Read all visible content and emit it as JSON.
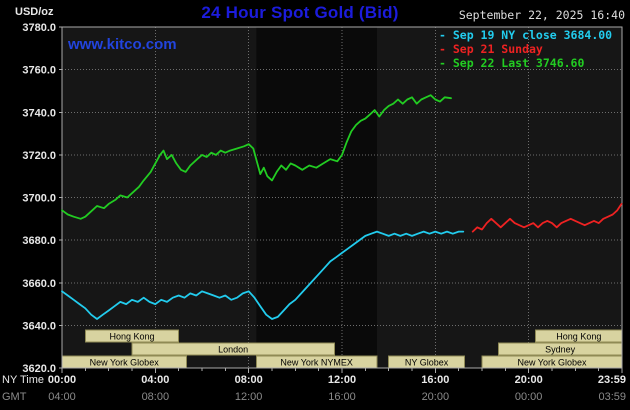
{
  "header": {
    "unit": "USD/oz",
    "title": "24 Hour Spot Gold (Bid)",
    "datetime": "September 22, 2025 16:40",
    "watermark": "www.kitco.com"
  },
  "colors": {
    "background": "#000000",
    "plot_bg": "#161616",
    "nymex_band": "#0a0a0a",
    "grid": "#6e6e6e",
    "plot_border": "#aaaaaa",
    "axis_text": "#e8e8e8",
    "gmt_text": "#8a8a8a",
    "session_box_bg": "#d8d3a0",
    "session_box_border": "#8f8a55",
    "session_text": "#000000",
    "cyan": "#22ccee",
    "red": "#ee2222",
    "green": "#22cc22"
  },
  "legend": [
    {
      "label": "Sep 19 NY close 3684.00",
      "color_key": "cyan"
    },
    {
      "label": "Sep 21 Sunday",
      "color_key": "red"
    },
    {
      "label": "Sep 22 Last 3746.60",
      "color_key": "green"
    }
  ],
  "axes": {
    "y_step": 20,
    "x_row1_label": "NY Time",
    "x_row2_label": "GMT",
    "x_tick_hours": [
      0,
      4,
      8,
      12,
      16,
      20,
      24
    ],
    "x_ticks_ny": [
      "00:00",
      "04:00",
      "08:00",
      "12:00",
      "16:00",
      "20:00",
      "23:59"
    ],
    "x_ticks_gmt": [
      "04:00",
      "08:00",
      "12:00",
      "16:00",
      "20:00",
      "00:00",
      "03:59"
    ]
  },
  "sessions": [
    {
      "row": 0,
      "label": "Hong Kong",
      "start": 1.0,
      "end": 5.0
    },
    {
      "row": 0,
      "label": "Hong Kong",
      "start": 20.3,
      "end": 24
    },
    {
      "row": 1,
      "label": "London",
      "start": 3.0,
      "end": 11.67
    },
    {
      "row": 1,
      "label": "Sydney",
      "start": 18.7,
      "end": 24
    },
    {
      "row": 2,
      "label": "New York Globex",
      "start": 0,
      "end": 5.33
    },
    {
      "row": 2,
      "label": "New York NYMEX",
      "start": 8.33,
      "end": 13.5
    },
    {
      "row": 2,
      "label": "NY Globex",
      "start": 14.0,
      "end": 17.25
    },
    {
      "row": 2,
      "label": "New York Globex",
      "start": 18.0,
      "end": 24
    }
  ],
  "chart_data": {
    "type": "line",
    "title": "24 Hour Spot Gold (Bid)",
    "ylabel": "USD/oz",
    "xlabel": "NY Time (hours 00:00-23:59)",
    "ylim": [
      3620,
      3780
    ],
    "xlim_hours": [
      0,
      24
    ],
    "grid": true,
    "legend_position": "top-right",
    "nymex_band_hours": [
      8.33,
      13.5
    ],
    "series": [
      {
        "name": "Sep 19 NY close 3684.00",
        "color_key": "cyan",
        "close": 3684.0,
        "points": [
          [
            0,
            3656
          ],
          [
            0.25,
            3654
          ],
          [
            0.5,
            3652
          ],
          [
            0.75,
            3650
          ],
          [
            1,
            3648
          ],
          [
            1.25,
            3645
          ],
          [
            1.5,
            3643
          ],
          [
            1.75,
            3645
          ],
          [
            2,
            3647
          ],
          [
            2.25,
            3649
          ],
          [
            2.5,
            3651
          ],
          [
            2.75,
            3650
          ],
          [
            3,
            3652
          ],
          [
            3.25,
            3651
          ],
          [
            3.5,
            3653
          ],
          [
            3.75,
            3651
          ],
          [
            4,
            3650
          ],
          [
            4.25,
            3652
          ],
          [
            4.5,
            3651
          ],
          [
            4.75,
            3653
          ],
          [
            5,
            3654
          ],
          [
            5.25,
            3653
          ],
          [
            5.5,
            3655
          ],
          [
            5.75,
            3654
          ],
          [
            6,
            3656
          ],
          [
            6.25,
            3655
          ],
          [
            6.5,
            3654
          ],
          [
            6.75,
            3653
          ],
          [
            7,
            3654
          ],
          [
            7.25,
            3652
          ],
          [
            7.5,
            3653
          ],
          [
            7.75,
            3655
          ],
          [
            8,
            3656
          ],
          [
            8.25,
            3653
          ],
          [
            8.5,
            3649
          ],
          [
            8.75,
            3645
          ],
          [
            9,
            3643
          ],
          [
            9.25,
            3644
          ],
          [
            9.5,
            3647
          ],
          [
            9.75,
            3650
          ],
          [
            10,
            3652
          ],
          [
            10.25,
            3655
          ],
          [
            10.5,
            3658
          ],
          [
            10.75,
            3661
          ],
          [
            11,
            3664
          ],
          [
            11.25,
            3667
          ],
          [
            11.5,
            3670
          ],
          [
            11.75,
            3672
          ],
          [
            12,
            3674
          ],
          [
            12.25,
            3676
          ],
          [
            12.5,
            3678
          ],
          [
            12.75,
            3680
          ],
          [
            13,
            3682
          ],
          [
            13.25,
            3683
          ],
          [
            13.5,
            3684
          ],
          [
            13.75,
            3683
          ],
          [
            14,
            3682
          ],
          [
            14.25,
            3683
          ],
          [
            14.5,
            3682
          ],
          [
            14.75,
            3683
          ],
          [
            15,
            3682
          ],
          [
            15.25,
            3683
          ],
          [
            15.5,
            3684
          ],
          [
            15.75,
            3683
          ],
          [
            16,
            3684
          ],
          [
            16.25,
            3683
          ],
          [
            16.5,
            3684
          ],
          [
            16.75,
            3683
          ],
          [
            17,
            3684
          ],
          [
            17.2,
            3684
          ]
        ]
      },
      {
        "name": "Sep 21 Sunday",
        "color_key": "red",
        "points": [
          [
            17.6,
            3684
          ],
          [
            17.8,
            3686
          ],
          [
            18,
            3685
          ],
          [
            18.2,
            3688
          ],
          [
            18.4,
            3690
          ],
          [
            18.6,
            3688
          ],
          [
            18.8,
            3686
          ],
          [
            19,
            3688
          ],
          [
            19.2,
            3690
          ],
          [
            19.4,
            3688
          ],
          [
            19.6,
            3687
          ],
          [
            19.8,
            3686
          ],
          [
            20,
            3687
          ],
          [
            20.2,
            3688
          ],
          [
            20.4,
            3686
          ],
          [
            20.6,
            3688
          ],
          [
            20.8,
            3689
          ],
          [
            21,
            3688
          ],
          [
            21.2,
            3686
          ],
          [
            21.4,
            3688
          ],
          [
            21.6,
            3689
          ],
          [
            21.8,
            3690
          ],
          [
            22,
            3689
          ],
          [
            22.2,
            3688
          ],
          [
            22.4,
            3687
          ],
          [
            22.6,
            3688
          ],
          [
            22.8,
            3689
          ],
          [
            23,
            3688
          ],
          [
            23.2,
            3690
          ],
          [
            23.4,
            3691
          ],
          [
            23.6,
            3692
          ],
          [
            23.8,
            3694
          ],
          [
            23.98,
            3697
          ]
        ]
      },
      {
        "name": "Sep 22 Last 3746.60",
        "color_key": "green",
        "last": 3746.6,
        "points": [
          [
            0,
            3694
          ],
          [
            0.25,
            3692
          ],
          [
            0.5,
            3691
          ],
          [
            0.8,
            3690
          ],
          [
            1,
            3691
          ],
          [
            1.3,
            3694
          ],
          [
            1.5,
            3696
          ],
          [
            1.8,
            3695
          ],
          [
            2,
            3697
          ],
          [
            2.3,
            3699
          ],
          [
            2.5,
            3701
          ],
          [
            2.8,
            3700
          ],
          [
            3,
            3702
          ],
          [
            3.3,
            3705
          ],
          [
            3.5,
            3708
          ],
          [
            3.8,
            3712
          ],
          [
            4,
            3716
          ],
          [
            4.2,
            3720
          ],
          [
            4.35,
            3722
          ],
          [
            4.5,
            3718
          ],
          [
            4.7,
            3720
          ],
          [
            4.9,
            3716
          ],
          [
            5.1,
            3713
          ],
          [
            5.3,
            3712
          ],
          [
            5.5,
            3715
          ],
          [
            5.8,
            3718
          ],
          [
            6,
            3720
          ],
          [
            6.2,
            3719
          ],
          [
            6.4,
            3721
          ],
          [
            6.6,
            3720
          ],
          [
            6.8,
            3722
          ],
          [
            7,
            3721
          ],
          [
            7.2,
            3722
          ],
          [
            7.5,
            3723
          ],
          [
            7.8,
            3724
          ],
          [
            8,
            3725
          ],
          [
            8.2,
            3723
          ],
          [
            8.35,
            3717
          ],
          [
            8.5,
            3711
          ],
          [
            8.65,
            3714
          ],
          [
            8.8,
            3710
          ],
          [
            9,
            3708
          ],
          [
            9.2,
            3712
          ],
          [
            9.4,
            3715
          ],
          [
            9.6,
            3713
          ],
          [
            9.8,
            3716
          ],
          [
            10,
            3715
          ],
          [
            10.3,
            3713
          ],
          [
            10.6,
            3715
          ],
          [
            10.9,
            3714
          ],
          [
            11.2,
            3716
          ],
          [
            11.5,
            3718
          ],
          [
            11.8,
            3717
          ],
          [
            12,
            3720
          ],
          [
            12.2,
            3726
          ],
          [
            12.4,
            3731
          ],
          [
            12.6,
            3734
          ],
          [
            12.8,
            3736
          ],
          [
            13,
            3737
          ],
          [
            13.2,
            3739
          ],
          [
            13.4,
            3741
          ],
          [
            13.6,
            3738
          ],
          [
            13.8,
            3741
          ],
          [
            14,
            3743
          ],
          [
            14.2,
            3744
          ],
          [
            14.4,
            3746
          ],
          [
            14.6,
            3744
          ],
          [
            14.8,
            3746
          ],
          [
            15,
            3747
          ],
          [
            15.2,
            3744
          ],
          [
            15.4,
            3746
          ],
          [
            15.6,
            3747
          ],
          [
            15.8,
            3748
          ],
          [
            16,
            3746
          ],
          [
            16.2,
            3745
          ],
          [
            16.4,
            3747
          ],
          [
            16.67,
            3746.6
          ]
        ]
      }
    ]
  }
}
